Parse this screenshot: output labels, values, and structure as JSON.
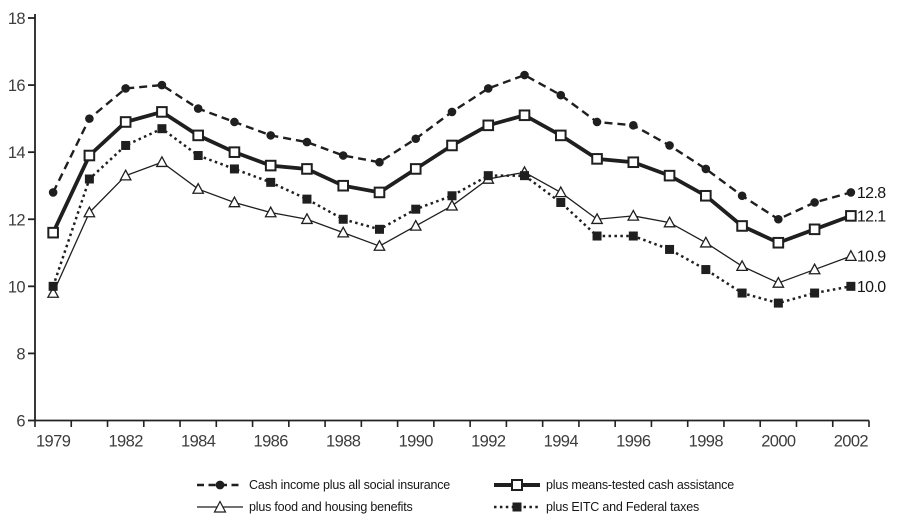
{
  "chart_data": {
    "type": "line",
    "x": [
      1979,
      1981,
      1982,
      1983,
      1984,
      1985,
      1986,
      1987,
      1988,
      1989,
      1990,
      1991,
      1992,
      1993,
      1994,
      1995,
      1996,
      1997,
      1998,
      1999,
      2000,
      2001,
      2002
    ],
    "x_tick_labels": [
      "1979",
      "1982",
      "1984",
      "1986",
      "1988",
      "1990",
      "1992",
      "1994",
      "1996",
      "1998",
      "2000",
      "2002"
    ],
    "ylim": [
      6,
      18
    ],
    "yticks": [
      6,
      8,
      10,
      12,
      14,
      16,
      18
    ],
    "grid": false,
    "legend_position": "bottom",
    "colors": {
      "series": "#1f1f1f",
      "axis": "#222222",
      "axis_text": "#3d3d3d"
    },
    "series": [
      {
        "name": "Cash income plus all social insurance",
        "line": "dashed",
        "marker": "filled-circle",
        "end_label": "12.8",
        "values": [
          12.8,
          15.0,
          15.9,
          16.0,
          15.3,
          14.9,
          14.5,
          14.3,
          13.9,
          13.7,
          14.4,
          15.2,
          15.9,
          16.3,
          15.7,
          14.9,
          14.8,
          14.2,
          13.5,
          12.7,
          12.0,
          12.5,
          12.8
        ]
      },
      {
        "name": "plus means-tested cash assistance",
        "line": "thick-solid",
        "marker": "open-square",
        "end_label": "12.1",
        "values": [
          11.6,
          13.9,
          14.9,
          15.2,
          14.5,
          14.0,
          13.6,
          13.5,
          13.0,
          12.8,
          13.5,
          14.2,
          14.8,
          15.1,
          14.5,
          13.8,
          13.7,
          13.3,
          12.7,
          11.8,
          11.3,
          11.7,
          12.1
        ]
      },
      {
        "name": "plus food and housing benefits",
        "line": "thin-solid",
        "marker": "open-triangle",
        "end_label": "10.9",
        "values": [
          9.8,
          12.2,
          13.3,
          13.7,
          12.9,
          12.5,
          12.2,
          12.0,
          11.6,
          11.2,
          11.8,
          12.4,
          13.2,
          13.4,
          12.8,
          12.0,
          12.1,
          11.9,
          11.3,
          10.6,
          10.1,
          10.5,
          10.9
        ]
      },
      {
        "name": "plus EITC and Federal taxes",
        "line": "dotted",
        "marker": "filled-square",
        "end_label": "10.0",
        "values": [
          10.0,
          13.2,
          14.2,
          14.7,
          13.9,
          13.5,
          13.1,
          12.6,
          12.0,
          11.7,
          12.3,
          12.7,
          13.3,
          13.3,
          12.5,
          11.5,
          11.5,
          11.1,
          10.5,
          9.8,
          9.5,
          9.8,
          10.0
        ]
      }
    ]
  }
}
